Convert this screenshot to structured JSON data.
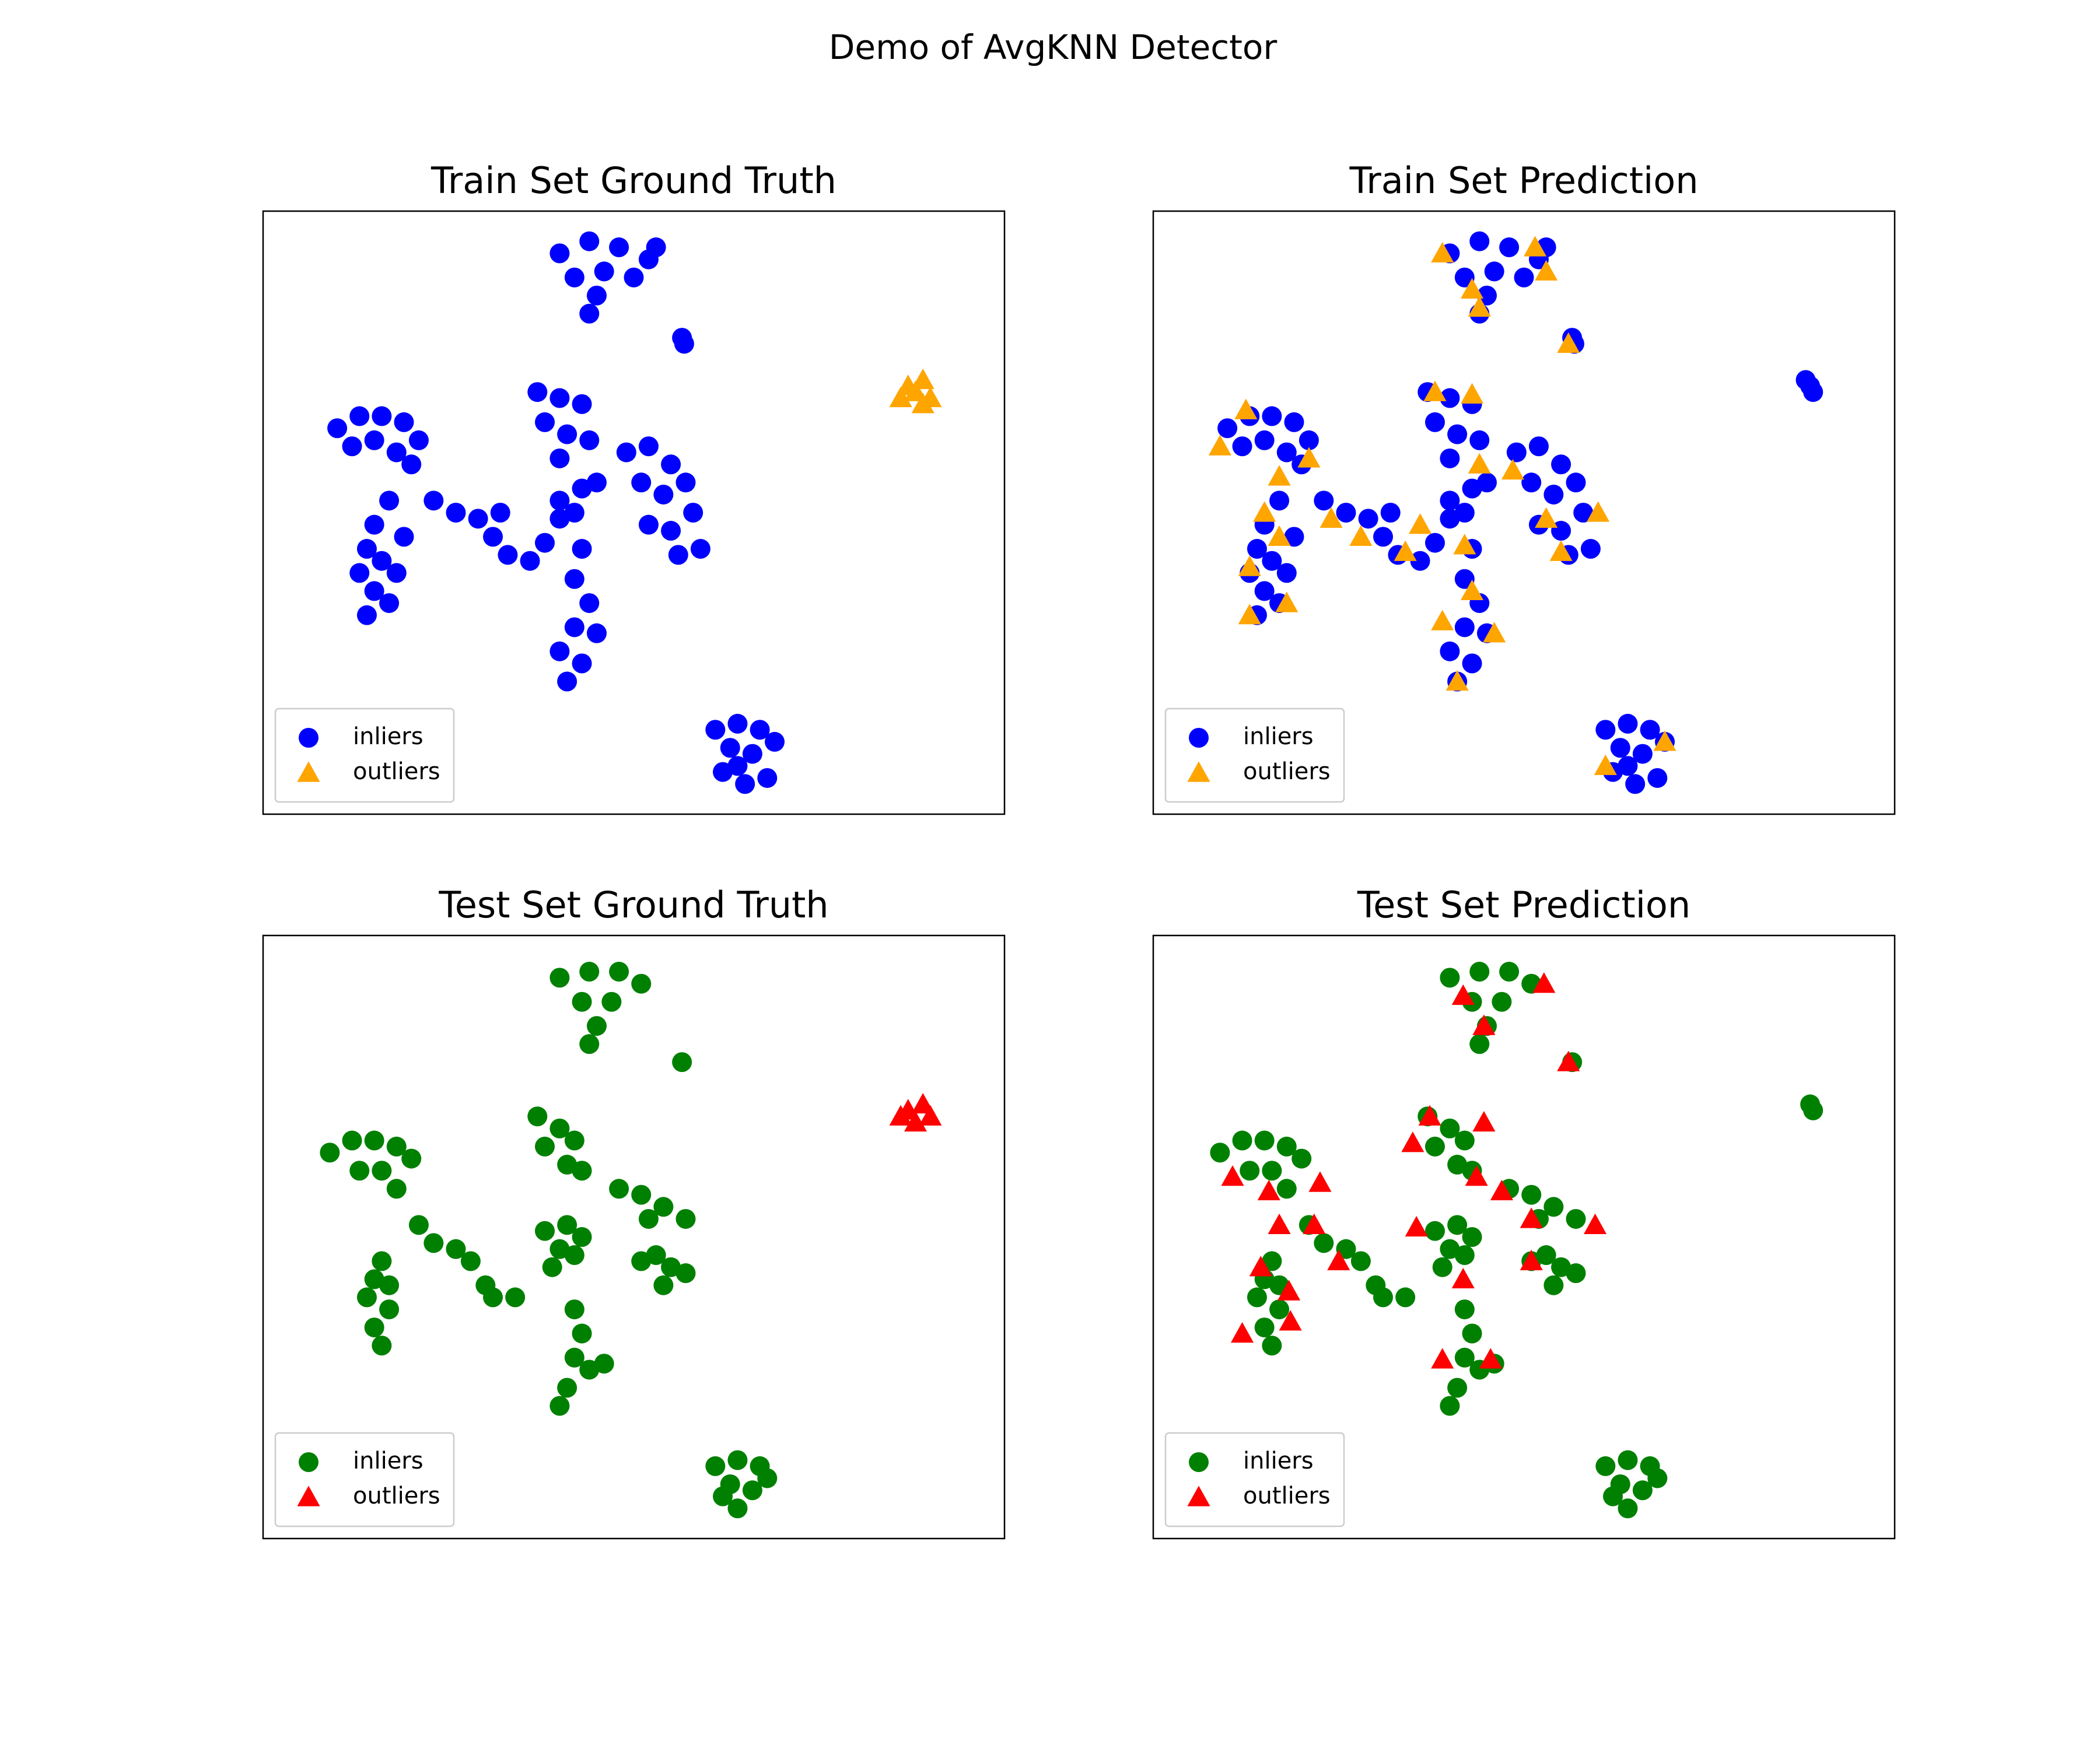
{
  "title": "Demo of AvgKNN Detector",
  "chart_data": [
    {
      "type": "scatter",
      "title": "Train Set Ground Truth",
      "xlim": [
        0,
        100
      ],
      "ylim": [
        0,
        100
      ],
      "legend": "lower left",
      "series": [
        {
          "name": "inliers",
          "color": "#0000ff",
          "marker": "circle",
          "x": [
            40,
            44,
            48,
            52,
            42,
            46,
            50,
            45,
            53,
            44,
            56.5,
            56.8,
            10,
            13,
            16,
            19,
            21,
            12,
            15,
            18,
            20,
            17,
            15,
            14,
            16,
            13,
            15,
            17,
            14,
            18,
            19,
            23,
            26,
            29,
            31,
            33,
            36,
            38,
            40,
            32,
            37,
            40,
            43,
            38,
            41,
            44,
            40,
            40,
            43,
            45,
            42,
            49,
            52,
            55,
            57,
            54,
            51,
            58,
            55,
            59,
            56,
            52,
            43,
            42,
            44,
            42,
            45,
            40,
            43,
            41,
            61,
            64,
            67,
            63,
            66,
            69,
            62,
            65,
            68,
            64
          ],
          "y": [
            93,
            95,
            94,
            92,
            89,
            90,
            89,
            86,
            94,
            83,
            79,
            78,
            64,
            66,
            66,
            65,
            62,
            61,
            62,
            60,
            58,
            52,
            48,
            44,
            42,
            40,
            37,
            35,
            33,
            40,
            46,
            52,
            50,
            49,
            46,
            43,
            42,
            45,
            49,
            50,
            70,
            69,
            68,
            65,
            63,
            62,
            59,
            52,
            54,
            55,
            50,
            60,
            61,
            58,
            55,
            53,
            55,
            50,
            47,
            44,
            43,
            48,
            44,
            39,
            35,
            31,
            30,
            27,
            25,
            22,
            14,
            15,
            14,
            11,
            10,
            12,
            7,
            5,
            6,
            8
          ]
        },
        {
          "name": "outliers",
          "color": "#ffa500",
          "marker": "triangle",
          "x": [
            87,
            89,
            88,
            90,
            86,
            89
          ],
          "y": [
            71,
            72,
            70,
            69,
            69,
            68
          ]
        }
      ]
    },
    {
      "type": "scatter",
      "title": "Train Set Prediction",
      "xlim": [
        0,
        100
      ],
      "ylim": [
        0,
        100
      ],
      "legend": "lower left",
      "series": [
        {
          "name": "inliers",
          "color": "#0000ff",
          "marker": "circle",
          "x": [
            40,
            44,
            48,
            52,
            42,
            46,
            50,
            45,
            53,
            44,
            56.5,
            56.8,
            10,
            13,
            16,
            19,
            21,
            12,
            15,
            18,
            20,
            17,
            15,
            14,
            16,
            13,
            15,
            17,
            14,
            18,
            19,
            23,
            26,
            29,
            31,
            33,
            36,
            38,
            40,
            32,
            37,
            40,
            43,
            38,
            41,
            44,
            40,
            40,
            43,
            45,
            42,
            49,
            52,
            55,
            57,
            54,
            51,
            58,
            55,
            59,
            56,
            52,
            43,
            42,
            44,
            42,
            45,
            40,
            43,
            41,
            61,
            64,
            67,
            63,
            66,
            69,
            62,
            65,
            68,
            64,
            88.6,
            89,
            88
          ],
          "y": [
            93,
            95,
            94,
            92,
            89,
            90,
            89,
            86,
            94,
            83,
            79,
            78,
            64,
            66,
            66,
            65,
            62,
            61,
            62,
            60,
            58,
            52,
            48,
            44,
            42,
            40,
            37,
            35,
            33,
            40,
            46,
            52,
            50,
            49,
            46,
            43,
            42,
            45,
            49,
            50,
            70,
            69,
            68,
            65,
            63,
            62,
            59,
            52,
            54,
            55,
            50,
            60,
            61,
            58,
            55,
            53,
            55,
            50,
            47,
            44,
            43,
            48,
            44,
            39,
            35,
            31,
            30,
            27,
            25,
            22,
            14,
            15,
            14,
            11,
            10,
            12,
            7,
            5,
            6,
            8,
            71,
            70,
            72
          ]
        },
        {
          "name": "outliers",
          "color": "#ffa500",
          "marker": "triangle",
          "x": [
            39,
            51.5,
            53,
            43,
            44,
            56,
            38,
            43,
            12.5,
            9,
            21,
            17,
            15,
            17,
            13,
            18,
            13,
            24,
            28,
            34,
            36,
            44,
            48.5,
            53,
            55,
            60,
            42,
            43,
            46,
            41,
            39,
            69,
            61
          ],
          "y": [
            93,
            94,
            90,
            87,
            84,
            78,
            70,
            69.6,
            67,
            61,
            59,
            56,
            50,
            46,
            41,
            35,
            33,
            49,
            46,
            43.5,
            48,
            58,
            57,
            49,
            43.5,
            50,
            44.6,
            37,
            30,
            22,
            32,
            12,
            8
          ]
        }
      ]
    },
    {
      "type": "scatter",
      "title": "Test Set Ground Truth",
      "xlim": [
        0,
        100
      ],
      "ylim": [
        0,
        100
      ],
      "legend": "lower left",
      "series": [
        {
          "name": "inliers",
          "color": "#008000",
          "marker": "circle",
          "x": [
            40,
            44,
            48,
            51,
            43,
            47,
            45,
            44,
            56.5,
            9,
            12,
            15,
            18,
            20,
            13,
            16,
            18,
            16,
            15,
            14,
            17,
            15,
            16,
            17,
            21,
            23,
            26,
            28,
            30,
            34,
            31,
            37,
            40,
            42,
            38,
            41,
            43,
            38,
            41,
            43,
            40,
            39,
            42,
            48,
            51,
            54,
            57,
            52,
            53,
            55,
            57,
            54,
            51,
            42,
            43,
            42,
            44,
            41,
            40,
            46,
            61,
            64,
            67,
            63,
            66,
            68,
            64,
            62
          ],
          "y": [
            93,
            94,
            94,
            92,
            89,
            89,
            85,
            82,
            79,
            64,
            66,
            66,
            65,
            63,
            61,
            61,
            58,
            46,
            43,
            40,
            38,
            35,
            32,
            42,
            52,
            49,
            48,
            46,
            42,
            40,
            40,
            70,
            68,
            66,
            65,
            62,
            61,
            51,
            52,
            50,
            48,
            45,
            47,
            58,
            57,
            55,
            53,
            53,
            47,
            45,
            44,
            42,
            46,
            38,
            34,
            30,
            28,
            25,
            22,
            29,
            12,
            13,
            12,
            9,
            8,
            10,
            5,
            7
          ]
        },
        {
          "name": "outliers",
          "color": "#ff0000",
          "marker": "triangle",
          "x": [
            87,
            89,
            88,
            90,
            86
          ],
          "y": [
            71,
            72,
            69,
            70,
            70
          ]
        }
      ]
    },
    {
      "type": "scatter",
      "title": "Test Set Prediction",
      "xlim": [
        0,
        100
      ],
      "ylim": [
        0,
        100
      ],
      "legend": "lower left",
      "series": [
        {
          "name": "inliers",
          "color": "#008000",
          "marker": "circle",
          "x": [
            40,
            44,
            48,
            51,
            43,
            47,
            45,
            44,
            56.5,
            9,
            12,
            15,
            18,
            20,
            13,
            16,
            18,
            16,
            15,
            14,
            17,
            15,
            16,
            17,
            21,
            23,
            26,
            28,
            30,
            34,
            31,
            37,
            40,
            42,
            38,
            41,
            43,
            38,
            41,
            43,
            40,
            39,
            42,
            48,
            51,
            54,
            57,
            52,
            53,
            55,
            57,
            54,
            51,
            42,
            43,
            42,
            44,
            41,
            40,
            46,
            61,
            64,
            67,
            63,
            66,
            68,
            64,
            62,
            88.6,
            89
          ],
          "y": [
            93,
            94,
            94,
            92,
            89,
            89,
            85,
            82,
            79,
            64,
            66,
            66,
            65,
            63,
            61,
            61,
            58,
            46,
            43,
            40,
            38,
            35,
            32,
            42,
            52,
            49,
            48,
            46,
            42,
            40,
            40,
            70,
            68,
            66,
            65,
            62,
            61,
            51,
            52,
            50,
            48,
            45,
            47,
            58,
            57,
            55,
            53,
            53,
            47,
            45,
            44,
            42,
            46,
            38,
            34,
            30,
            28,
            25,
            22,
            29,
            12,
            13,
            12,
            9,
            8,
            10,
            5,
            7,
            72,
            71
          ]
        },
        {
          "name": "outliers",
          "color": "#ff0000",
          "marker": "triangle",
          "x": [
            41.8,
            44.6,
            52.7,
            56,
            37.3,
            35,
            44.6,
            10.7,
            15.6,
            22.5,
            21.7,
            17,
            14.5,
            18.3,
            12,
            18.5,
            25,
            35.5,
            43.6,
            47,
            51,
            59.6,
            51,
            41.8,
            45.5,
            39
          ],
          "y": [
            90,
            85,
            92,
            79,
            70,
            65.6,
            69,
            60,
            57.6,
            59,
            52,
            52,
            45,
            41,
            34,
            36,
            46,
            51.6,
            60,
            57.6,
            53,
            52,
            46,
            43,
            29.7,
            29.7
          ]
        }
      ]
    }
  ]
}
